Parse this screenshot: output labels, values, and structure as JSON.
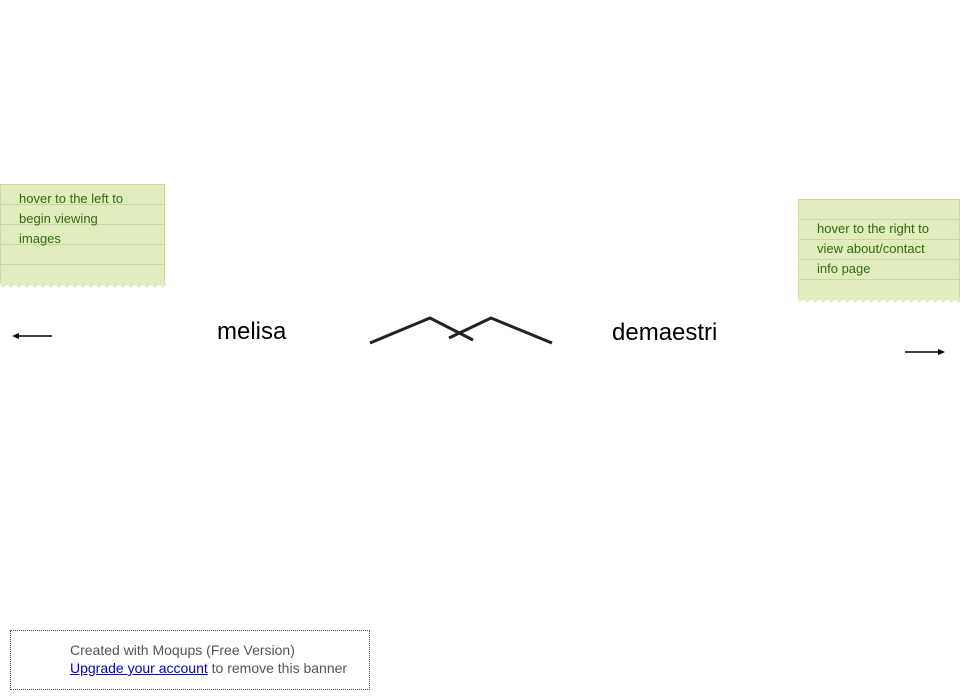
{
  "notes": {
    "left": {
      "lines": [
        "hover to the left to",
        "begin viewing",
        "images"
      ]
    },
    "right": {
      "lines": [
        "hover to the right to",
        "view about/contact",
        "info page"
      ]
    }
  },
  "brand": {
    "first": "melisa",
    "last": "demaestri",
    "logo_icon": "zigzag-logo-icon"
  },
  "nav": {
    "left_icon": "arrow-left-icon",
    "right_icon": "arrow-right-icon"
  },
  "banner": {
    "line1": "Created with Moqups (Free Version)",
    "link_text": "Upgrade your account",
    "line2_suffix": " to remove this banner"
  },
  "colors": {
    "note_bg": "#e2edbe",
    "note_text": "#2e6b0e",
    "link": "#0000cc"
  }
}
